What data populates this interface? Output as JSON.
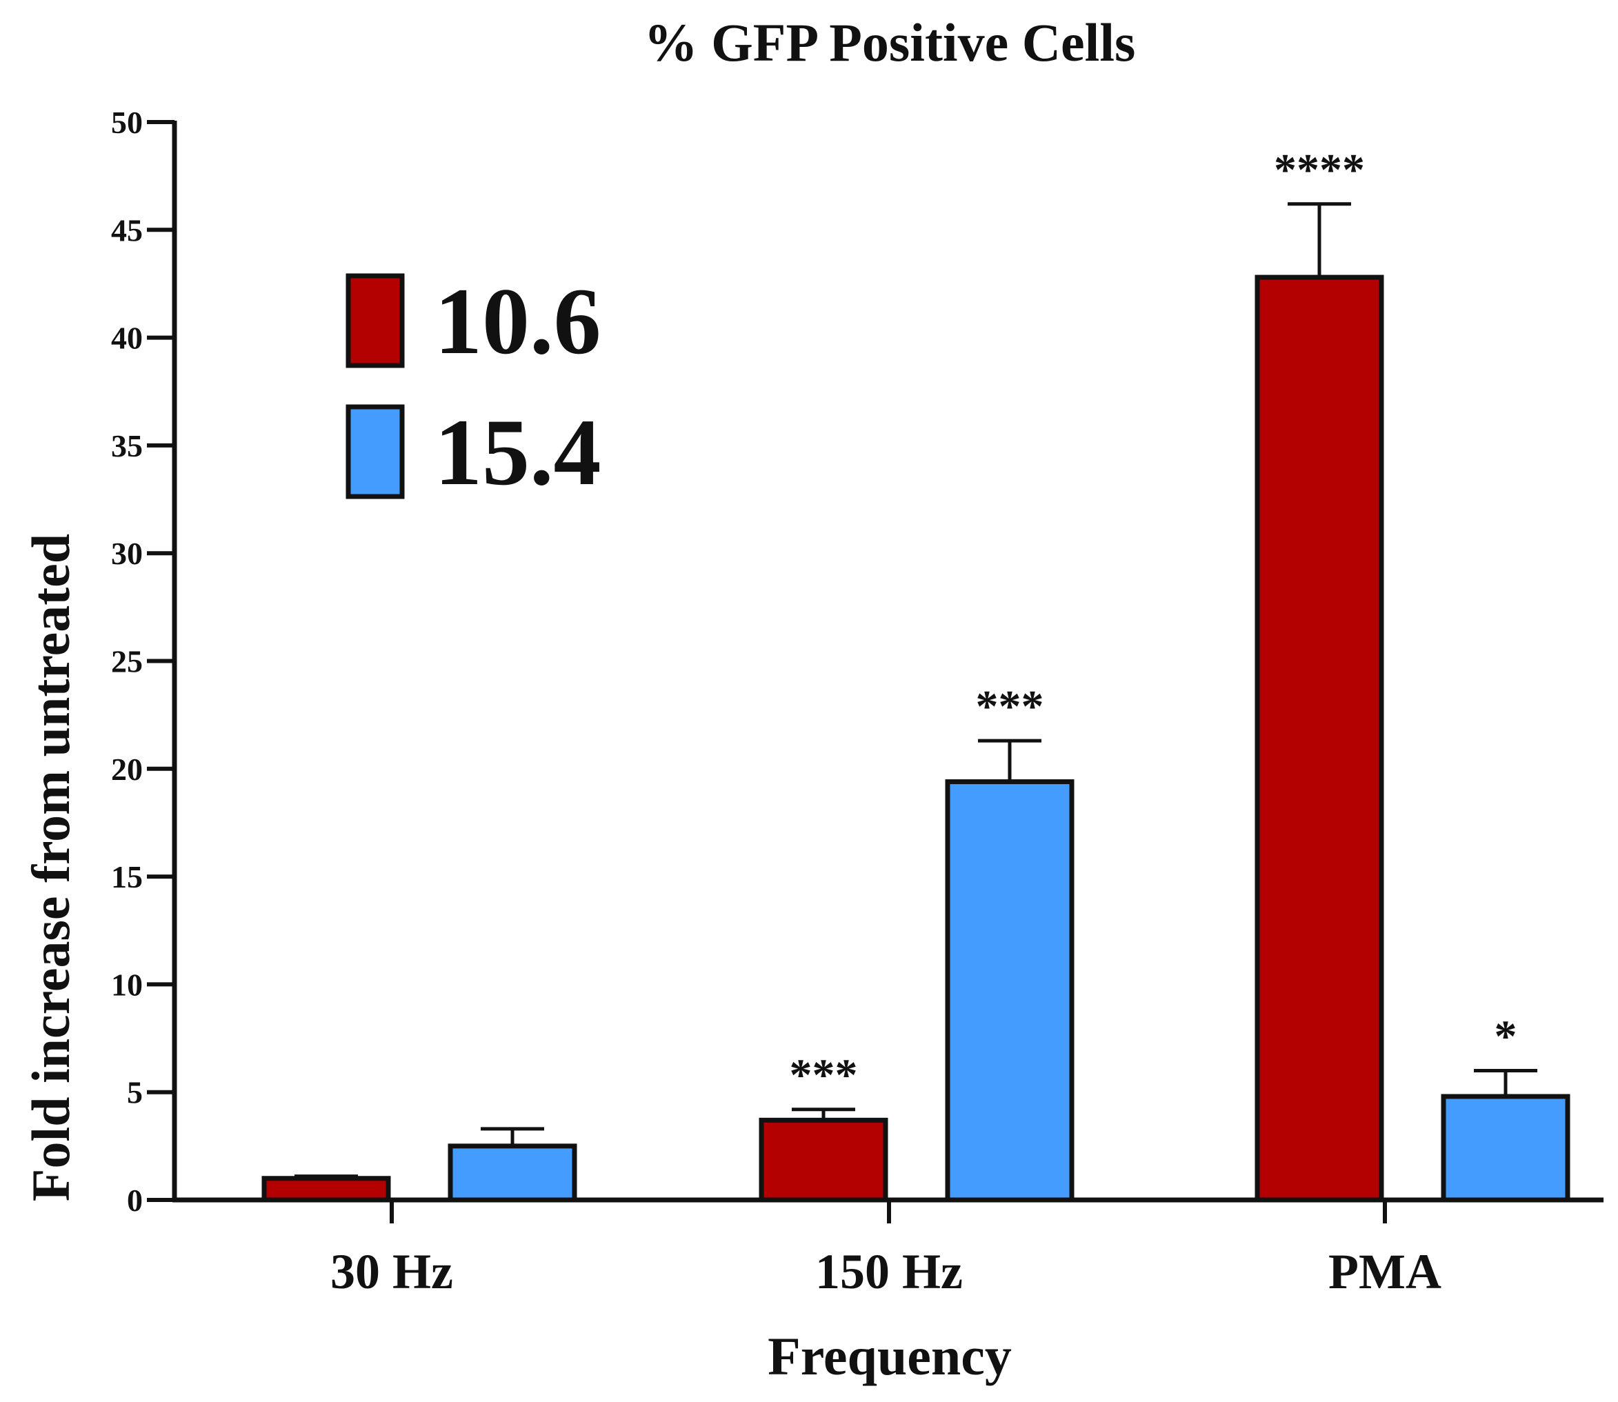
{
  "chart_data": {
    "type": "bar",
    "title": "% GFP Positive Cells",
    "xlabel": "Frequency",
    "ylabel": "Fold increase from untreated",
    "categories": [
      "30 Hz",
      "150 Hz",
      "PMA"
    ],
    "ylim": [
      0,
      50
    ],
    "yticks": [
      0,
      5,
      10,
      15,
      20,
      25,
      30,
      35,
      40,
      45,
      50
    ],
    "grid": false,
    "legend_position": "top-left",
    "series": [
      {
        "name": "10.6",
        "color": "#B30000",
        "values": [
          1.0,
          3.7,
          42.8
        ],
        "error": [
          0.1,
          0.5,
          3.4
        ],
        "annotations": [
          "",
          "***",
          "****"
        ]
      },
      {
        "name": "15.4",
        "color": "#449CFF",
        "values": [
          2.5,
          19.4,
          4.8
        ],
        "error": [
          0.8,
          1.9,
          1.2
        ],
        "annotations": [
          "",
          "***",
          "*"
        ]
      }
    ]
  }
}
